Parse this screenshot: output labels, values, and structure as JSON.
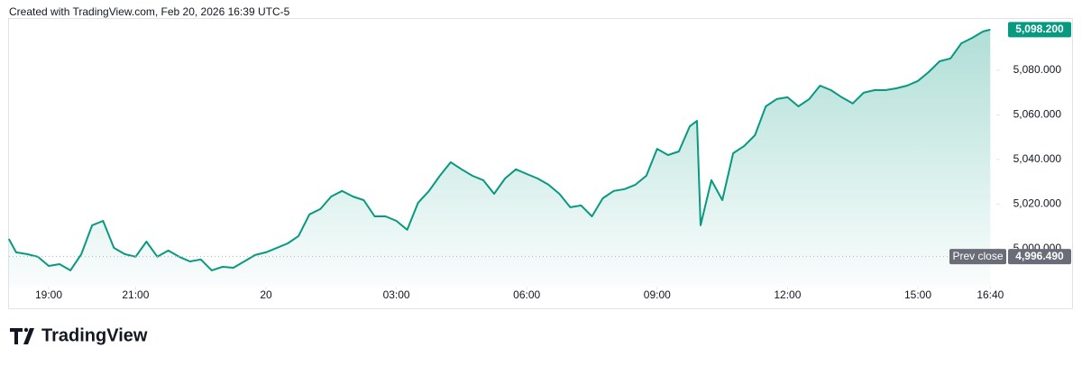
{
  "header": {
    "text": "Created with TradingView.com, Feb 20, 2026 16:39 UTC-5"
  },
  "chart_data": {
    "type": "line",
    "color": "#089981",
    "x": [
      "18:05",
      "18:15",
      "18:30",
      "18:45",
      "19:00",
      "19:15",
      "19:30",
      "19:45",
      "20:00",
      "20:15",
      "20:30",
      "20:45",
      "21:00",
      "21:15",
      "21:30",
      "21:45",
      "22:00",
      "22:15",
      "22:30",
      "22:45",
      "23:00",
      "23:15",
      "23:30",
      "23:45",
      "00:00",
      "00:15",
      "00:30",
      "00:45",
      "01:00",
      "01:15",
      "01:30",
      "01:45",
      "02:00",
      "02:15",
      "02:30",
      "02:45",
      "03:00",
      "03:15",
      "03:30",
      "03:45",
      "04:00",
      "04:15",
      "04:30",
      "04:45",
      "05:00",
      "05:15",
      "05:30",
      "05:45",
      "06:00",
      "06:15",
      "06:30",
      "06:45",
      "07:00",
      "07:15",
      "07:30",
      "07:45",
      "08:00",
      "08:15",
      "08:30",
      "08:45",
      "09:00",
      "09:15",
      "09:30",
      "09:45",
      "09:55",
      "10:00",
      "10:15",
      "10:30",
      "10:45",
      "11:00",
      "11:15",
      "11:30",
      "11:45",
      "12:00",
      "12:15",
      "12:30",
      "12:45",
      "13:00",
      "13:15",
      "13:30",
      "13:45",
      "14:00",
      "14:15",
      "14:30",
      "14:45",
      "15:00",
      "15:15",
      "15:30",
      "15:45",
      "16:00",
      "16:15",
      "16:30",
      "16:40"
    ],
    "values": [
      5004.4,
      4998.4,
      4997.6,
      4996.4,
      4992.3,
      4993.1,
      4990.3,
      4997.6,
      5010.5,
      5012.5,
      5000.4,
      4997.6,
      4996.4,
      5003.2,
      4996.4,
      4999.2,
      4996.4,
      4994.3,
      4995.2,
      4990.3,
      4991.9,
      4991.5,
      4994.3,
      4997.2,
      4998.4,
      5000.4,
      5002.4,
      5005.7,
      5015.4,
      5017.8,
      5023.4,
      5025.9,
      5023.4,
      5021.8,
      5014.5,
      5014.5,
      5012.5,
      5008.5,
      5020.6,
      5025.9,
      5032.7,
      5038.8,
      5035.6,
      5032.7,
      5030.7,
      5024.6,
      5031.5,
      5035.6,
      5033.5,
      5031.5,
      5028.7,
      5024.6,
      5018.6,
      5019.4,
      5014.5,
      5022.6,
      5025.9,
      5026.7,
      5028.7,
      5032.7,
      5044.8,
      5042.0,
      5043.6,
      5054.9,
      5057.3,
      5010.5,
      5030.7,
      5021.8,
      5042.8,
      5046.0,
      5050.9,
      5063.8,
      5067.1,
      5067.9,
      5063.8,
      5067.1,
      5073.1,
      5071.1,
      5067.9,
      5065.1,
      5069.9,
      5071.1,
      5071.1,
      5071.9,
      5073.1,
      5075.2,
      5079.2,
      5084.0,
      5085.3,
      5092.1,
      5094.5,
      5097.4,
      5098.2
    ],
    "last_price_label": "5,098.200",
    "prev_close": {
      "label": "Prev close",
      "value": 4996.49,
      "value_label": "4,996.490"
    },
    "ylim": [
      4983,
      5102.6
    ],
    "yticks": [
      {
        "value": 5000,
        "label": "5,000.000"
      },
      {
        "value": 5020,
        "label": "5,020.000"
      },
      {
        "value": 5040,
        "label": "5,040.000"
      },
      {
        "value": 5060,
        "label": "5,060.000"
      },
      {
        "value": 5080,
        "label": "5,080.000"
      }
    ],
    "xticks": [
      {
        "value": "19:00",
        "label": "19:00"
      },
      {
        "value": "21:00",
        "label": "21:00"
      },
      {
        "value": "00:00",
        "label": "20"
      },
      {
        "value": "03:00",
        "label": "03:00"
      },
      {
        "value": "06:00",
        "label": "06:00"
      },
      {
        "value": "09:00",
        "label": "09:00"
      },
      {
        "value": "12:00",
        "label": "12:00"
      },
      {
        "value": "15:00",
        "label": "15:00"
      },
      {
        "value": "16:40",
        "label": "16:40"
      }
    ]
  },
  "footer": {
    "logo": "TradingView"
  }
}
